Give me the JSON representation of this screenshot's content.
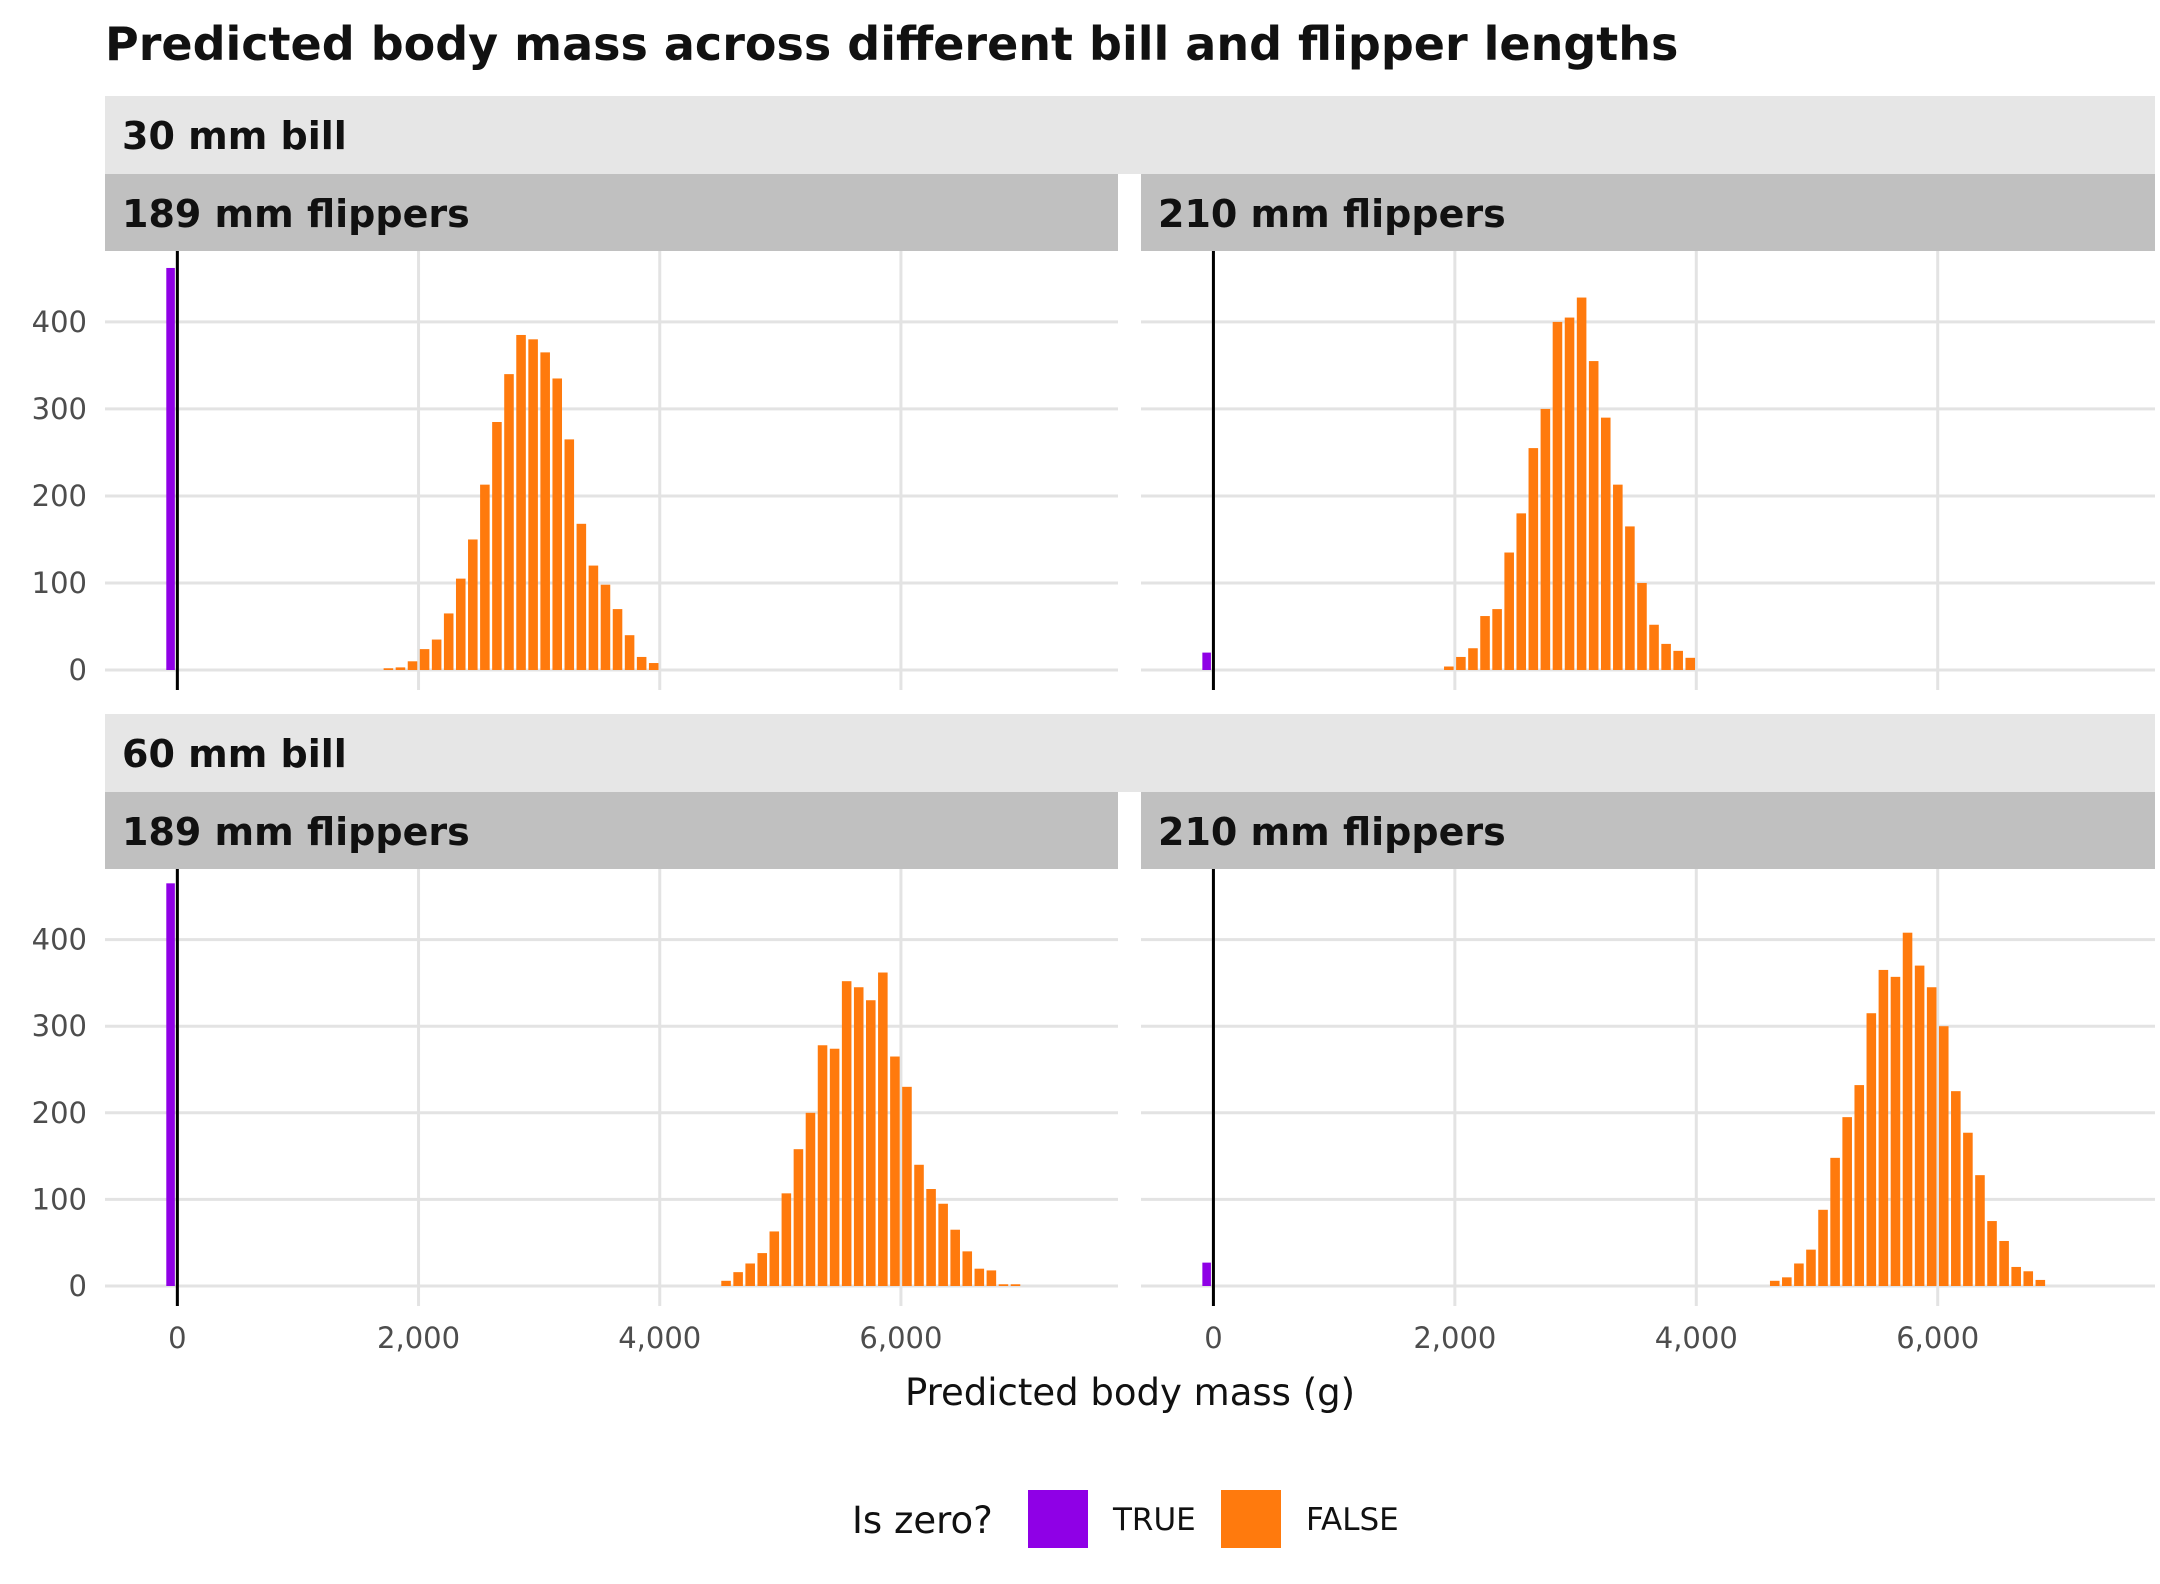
{
  "chart_data": {
    "type": "bar",
    "title": "Predicted body mass across different bill and flipper lengths",
    "xlabel": "Predicted body mass (g)",
    "ylabel": "",
    "xlim": [
      -600,
      7800
    ],
    "ylim": [
      0,
      470
    ],
    "x_ticks": [
      0,
      2000,
      4000,
      6000
    ],
    "x_tick_labels": [
      "0",
      "2,000",
      "4,000",
      "6,000"
    ],
    "y_ticks": [
      0,
      100,
      200,
      300,
      400
    ],
    "y_tick_labels": [
      "0",
      "100",
      "200",
      "300",
      "400"
    ],
    "bin_width": 100,
    "grid": true,
    "legend": {
      "title": "Is zero?",
      "position": "bottom",
      "entries": [
        {
          "label": "TRUE",
          "color": "#8f00e6"
        },
        {
          "label": "FALSE",
          "color": "#ff7a0d"
        }
      ]
    },
    "rows": [
      {
        "label": "30 mm bill"
      },
      {
        "label": "60 mm bill"
      }
    ],
    "panels": [
      {
        "row_label": "30 mm bill",
        "col_label": "189 mm flippers",
        "zero_count": 462,
        "bins_x": [
          1700,
          1800,
          1900,
          2000,
          2100,
          2200,
          2300,
          2400,
          2500,
          2600,
          2700,
          2800,
          2900,
          3000,
          3100,
          3200,
          3300,
          3400,
          3500,
          3600,
          3700,
          3800,
          3900
        ],
        "bins_count": [
          2,
          3,
          10,
          24,
          35,
          65,
          105,
          150,
          213,
          285,
          340,
          385,
          380,
          365,
          335,
          265,
          168,
          120,
          98,
          70,
          40,
          15,
          8
        ]
      },
      {
        "row_label": "30 mm bill",
        "col_label": "210 mm flippers",
        "zero_count": 20,
        "bins_x": [
          1900,
          2000,
          2100,
          2200,
          2300,
          2400,
          2500,
          2600,
          2700,
          2800,
          2900,
          3000,
          3100,
          3200,
          3300,
          3400,
          3500,
          3600,
          3700,
          3800,
          3900
        ],
        "bins_count": [
          4,
          15,
          25,
          62,
          70,
          135,
          180,
          255,
          300,
          400,
          405,
          428,
          355,
          290,
          213,
          165,
          100,
          52,
          30,
          22,
          14
        ]
      },
      {
        "row_label": "60 mm bill",
        "col_label": "189 mm flippers",
        "zero_count": 465,
        "bins_x": [
          4500,
          4600,
          4700,
          4800,
          4900,
          5000,
          5100,
          5200,
          5300,
          5400,
          5500,
          5600,
          5700,
          5800,
          5900,
          6000,
          6100,
          6200,
          6300,
          6400,
          6500,
          6600,
          6700,
          6800,
          6900
        ],
        "bins_count": [
          6,
          16,
          26,
          38,
          63,
          107,
          158,
          200,
          278,
          274,
          352,
          345,
          330,
          362,
          265,
          230,
          140,
          112,
          95,
          65,
          40,
          20,
          18,
          2,
          2
        ]
      },
      {
        "row_label": "60 mm bill",
        "col_label": "210 mm flippers",
        "zero_count": 27,
        "bins_x": [
          4600,
          4700,
          4800,
          4900,
          5000,
          5100,
          5200,
          5300,
          5400,
          5500,
          5600,
          5700,
          5800,
          5900,
          6000,
          6100,
          6200,
          6300,
          6400,
          6500,
          6600,
          6700,
          6800
        ],
        "bins_count": [
          6,
          10,
          26,
          42,
          88,
          148,
          195,
          232,
          315,
          365,
          357,
          408,
          370,
          345,
          300,
          225,
          177,
          128,
          75,
          52,
          22,
          17,
          7
        ]
      }
    ]
  }
}
